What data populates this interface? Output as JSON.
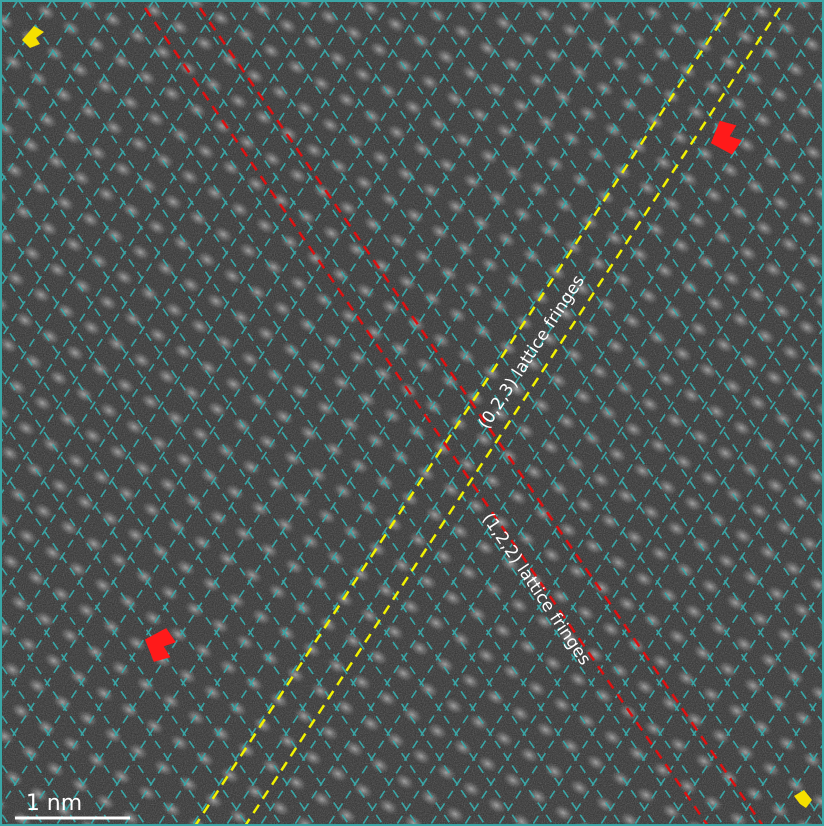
{
  "labels": {
    "fringes_023": "(0,2,3) lattice fringes",
    "fringes_122": "(1,2,2) lattice fringes"
  },
  "scale_bar": {
    "label": "1 nm"
  }
}
